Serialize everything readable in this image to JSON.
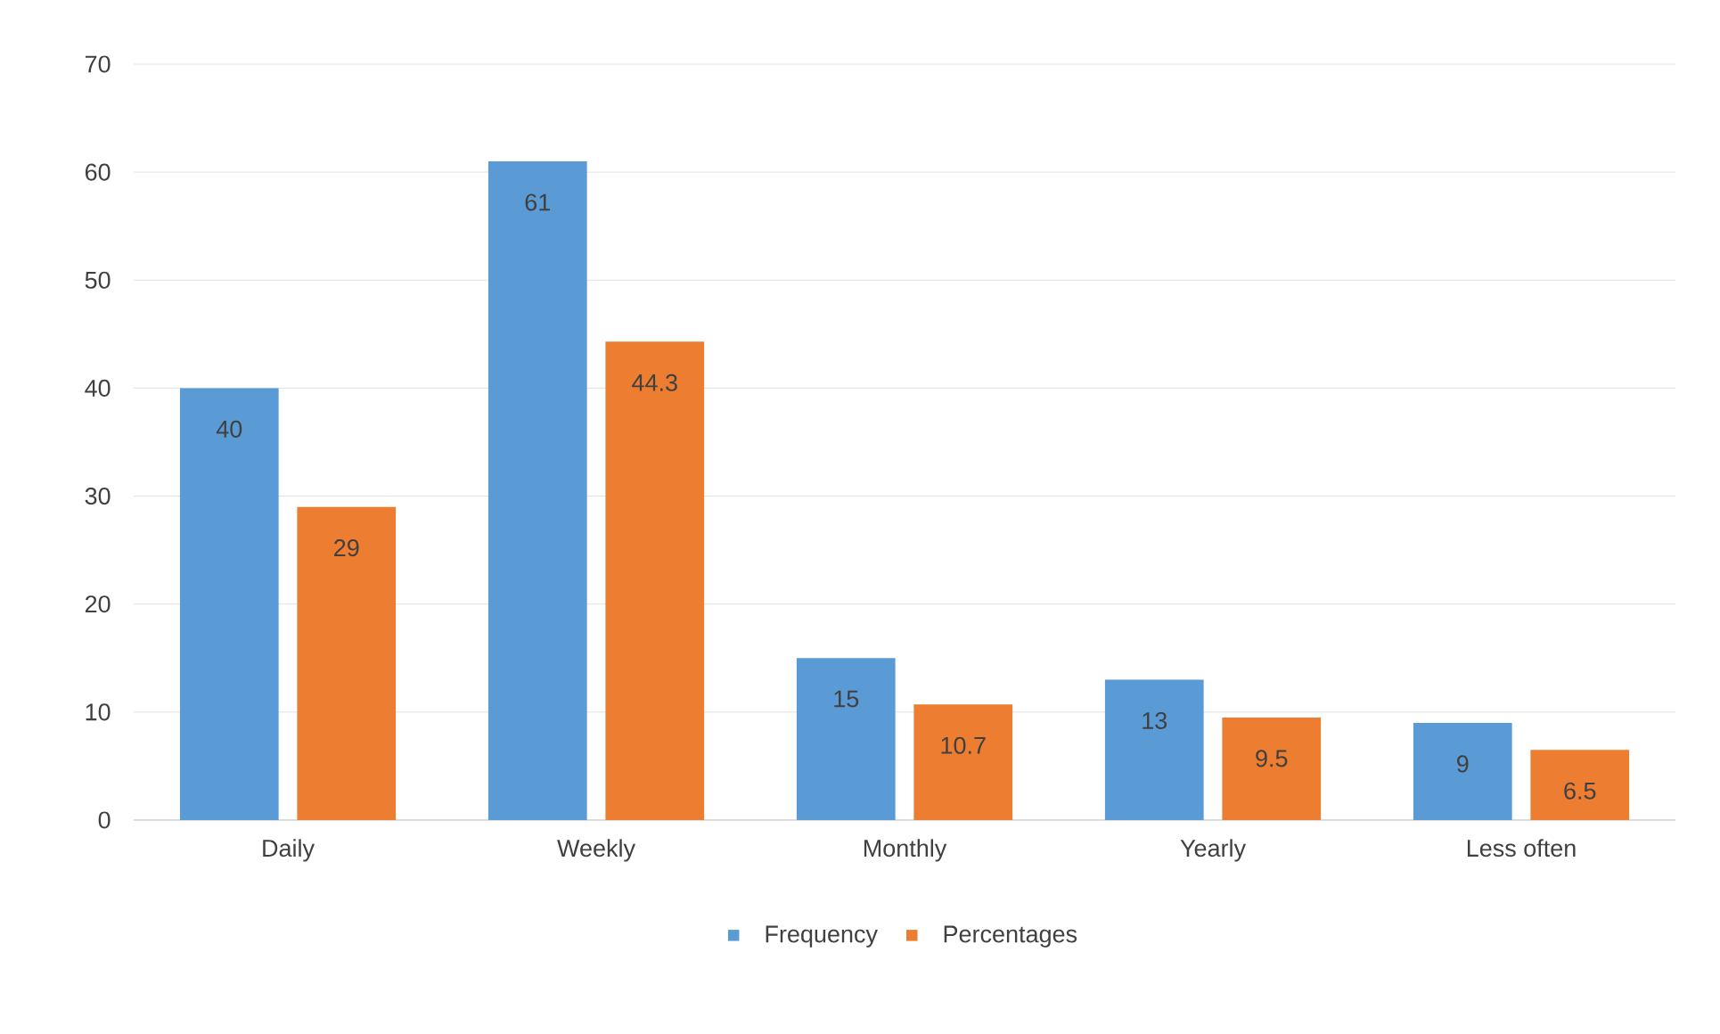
{
  "chart_data": {
    "type": "bar",
    "categories": [
      "Daily",
      "Weekly",
      "Monthly",
      "Yearly",
      "Less often"
    ],
    "series": [
      {
        "name": "Frequency",
        "color": "#5b9bd5",
        "values": [
          40,
          61,
          15,
          13,
          9
        ]
      },
      {
        "name": "Percentages",
        "color": "#ed7d31",
        "values": [
          29,
          44.3,
          10.7,
          9.5,
          6.5
        ]
      }
    ],
    "ylim": [
      0,
      70
    ],
    "yticks": [
      0,
      10,
      20,
      30,
      40,
      50,
      60,
      70
    ],
    "grid": "y",
    "legend": "bottom",
    "data_labels": true
  }
}
